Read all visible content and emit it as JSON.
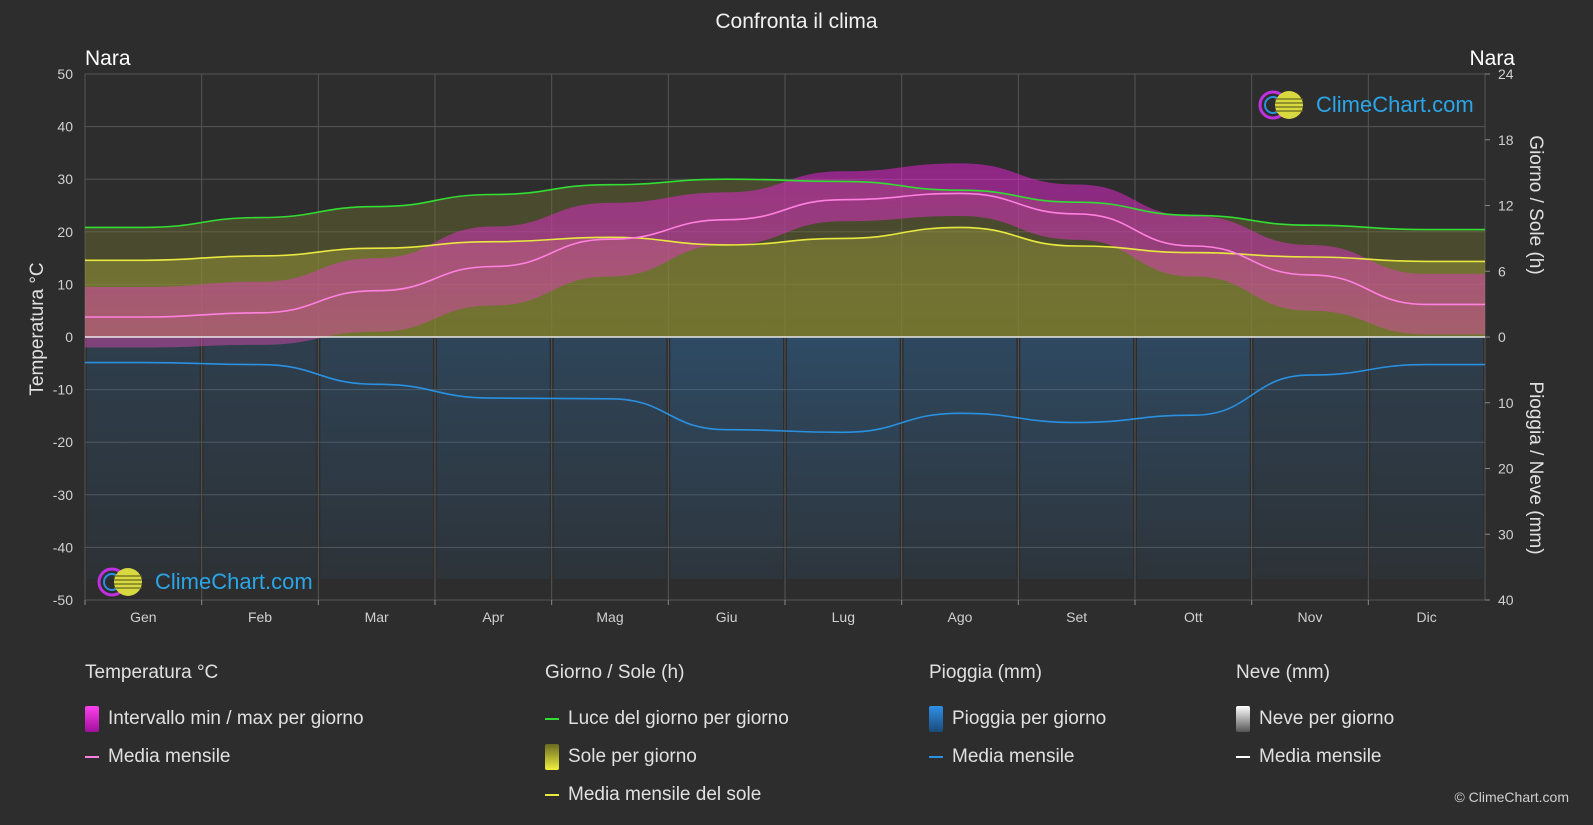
{
  "title": "Confronta il clima",
  "location_left": "Nara",
  "location_right": "Nara",
  "logo_text": "ClimeChart.com",
  "copyright": "© ClimeChart.com",
  "colors": {
    "background": "#2d2d2d",
    "temp_range": "#e020d0",
    "temp_mean": "#ff80e0",
    "daylight": "#33dd33",
    "sun": "#c8c832",
    "sun_mean": "#e8e840",
    "rain": "#2f80c8",
    "rain_mean": "#2a90e0",
    "snow": "#d0d0d0"
  },
  "chart_data": {
    "type": "line",
    "categories": [
      "Gen",
      "Feb",
      "Mar",
      "Apr",
      "Mag",
      "Giu",
      "Lug",
      "Ago",
      "Set",
      "Ott",
      "Nov",
      "Dic"
    ],
    "y_left": {
      "label": "Temperatura °C",
      "range": [
        -50,
        50
      ],
      "ticks": [
        "50",
        "40",
        "30",
        "20",
        "10",
        "0",
        "-10",
        "-20",
        "-30",
        "-40",
        "-50"
      ]
    },
    "y_right_top": {
      "label": "Giorno / Sole (h)",
      "range": [
        0,
        24
      ],
      "ticks": [
        "24",
        "18",
        "12",
        "6",
        "0"
      ]
    },
    "y_right_bottom": {
      "label": "Pioggia / Neve (mm)",
      "range": [
        0,
        40
      ],
      "ticks": [
        "0",
        "10",
        "20",
        "30",
        "40"
      ]
    },
    "series": [
      {
        "name": "Media mensile",
        "group": "Temperatura °C",
        "unit": "°C",
        "values": [
          3.8,
          4.6,
          8.8,
          13.4,
          18.6,
          22.3,
          26.1,
          27.3,
          23.4,
          17.3,
          11.8,
          6.2
        ]
      },
      {
        "name": "Intervallo min / max per giorno",
        "group": "Temperatura °C",
        "unit": "°C",
        "min": [
          -2,
          -1.5,
          1,
          6,
          11.5,
          17.5,
          22,
          23,
          18.5,
          11.5,
          5,
          0.5
        ],
        "max": [
          9.5,
          10.5,
          15,
          21,
          25.5,
          27.5,
          31.5,
          33,
          29,
          23,
          17.5,
          12
        ]
      },
      {
        "name": "Luce del giorno per giorno",
        "group": "Giorno / Sole (h)",
        "unit": "h",
        "values": [
          10.0,
          10.9,
          11.9,
          13.0,
          13.9,
          14.4,
          14.2,
          13.4,
          12.3,
          11.1,
          10.2,
          9.8
        ]
      },
      {
        "name": "Media mensile del sole",
        "group": "Giorno / Sole (h)",
        "unit": "h",
        "values": [
          7.0,
          7.4,
          8.1,
          8.7,
          9.1,
          8.4,
          9.0,
          10.0,
          8.3,
          7.7,
          7.3,
          6.9
        ]
      },
      {
        "name": "Media mensile",
        "group": "Pioggia (mm)",
        "unit": "mm",
        "values": [
          3.9,
          4.2,
          7.2,
          9.3,
          9.4,
          14.1,
          14.5,
          11.6,
          13.0,
          11.9,
          5.8,
          4.2
        ]
      },
      {
        "name": "Media mensile",
        "group": "Neve (mm)",
        "unit": "mm",
        "values": [
          0,
          0,
          0,
          0,
          0,
          0,
          0,
          0,
          0,
          0,
          0,
          0
        ]
      }
    ]
  },
  "legend": {
    "groups": [
      {
        "title": "Temperatura °C",
        "items": [
          {
            "label": "Intervallo min / max per giorno",
            "kind": "box",
            "color": "#e020d0"
          },
          {
            "label": "Media mensile",
            "kind": "line",
            "color": "#ff80e0"
          }
        ]
      },
      {
        "title": "Giorno / Sole (h)",
        "items": [
          {
            "label": "Luce del giorno per giorno",
            "kind": "line",
            "color": "#33dd33"
          },
          {
            "label": "Sole per giorno",
            "kind": "box",
            "color": "#c8c832"
          },
          {
            "label": "Media mensile del sole",
            "kind": "line",
            "color": "#e8e840"
          }
        ]
      },
      {
        "title": "Pioggia (mm)",
        "items": [
          {
            "label": "Pioggia per giorno",
            "kind": "box",
            "color": "#2f80c8"
          },
          {
            "label": "Media mensile",
            "kind": "line",
            "color": "#2a90e0"
          }
        ]
      },
      {
        "title": "Neve (mm)",
        "items": [
          {
            "label": "Neve per giorno",
            "kind": "box",
            "color": "#d0d0d0"
          },
          {
            "label": "Media mensile",
            "kind": "line",
            "color": "#ffffff"
          }
        ]
      }
    ]
  }
}
